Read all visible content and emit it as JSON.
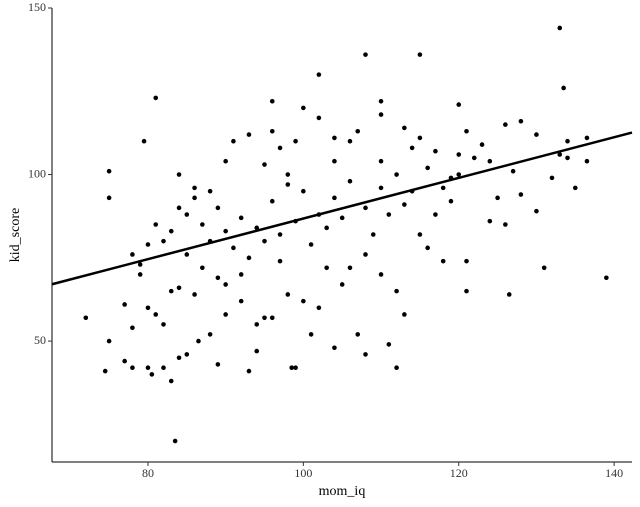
{
  "chart_data": {
    "type": "scatter",
    "x_label": "mom_iq",
    "y_label": "kid_score",
    "xlim": [
      67.65,
      142.3
    ],
    "ylim": [
      13.7,
      150
    ],
    "xticks": [
      80,
      100,
      120,
      140
    ],
    "yticks": [
      50,
      100,
      150
    ],
    "grid": false,
    "color": "#000000",
    "fit": {
      "intercept": 25.8,
      "slope": 0.61,
      "color": "#000000"
    },
    "x": [
      133,
      115,
      108,
      133.5,
      81,
      96,
      102,
      120,
      110,
      79.5,
      75,
      75,
      84,
      139,
      131,
      126.5,
      121,
      121,
      112,
      111,
      108,
      107,
      83.5,
      72,
      74.5,
      75,
      77,
      78,
      77,
      78,
      80,
      80.5,
      82,
      83,
      84,
      85,
      83,
      86,
      86.5,
      88,
      89,
      93,
      98.5,
      99,
      94,
      101,
      104,
      113,
      96,
      95,
      100,
      90,
      92,
      90,
      97,
      103,
      105,
      110,
      112,
      116,
      118,
      124,
      126,
      128,
      130,
      132,
      133,
      134,
      135,
      136.5,
      136.5,
      134,
      130,
      128,
      126,
      123,
      121,
      120,
      119,
      117,
      115,
      113,
      110,
      107,
      104,
      102,
      100,
      99,
      97,
      95,
      93,
      91,
      90,
      88,
      86,
      85,
      84,
      83,
      82,
      80,
      79,
      78,
      81,
      87,
      89,
      92,
      94,
      96,
      98,
      100,
      102,
      104,
      106,
      108,
      110,
      112,
      114,
      116,
      118,
      120,
      122,
      124,
      127,
      125,
      91,
      93,
      95,
      97,
      99,
      101,
      103,
      105,
      109,
      111,
      113,
      87,
      89,
      85,
      81,
      82,
      80,
      79,
      84,
      92,
      94,
      98,
      102,
      106,
      108,
      115,
      117,
      119,
      88,
      90,
      86,
      96,
      98,
      104,
      106,
      110,
      114
    ],
    "y": [
      144,
      136,
      136,
      126,
      123,
      122,
      130,
      121,
      122,
      110,
      101,
      93,
      100,
      69,
      72,
      64,
      65,
      74,
      42,
      49,
      46,
      52,
      20,
      57,
      41,
      50,
      61,
      54,
      44,
      42,
      42,
      40,
      42,
      38,
      45,
      46,
      65,
      64,
      50,
      52,
      43,
      41,
      42,
      42,
      47,
      52,
      48,
      58,
      57,
      57,
      62,
      67,
      70,
      58,
      74,
      72,
      67,
      70,
      65,
      78,
      74,
      86,
      85,
      94,
      89,
      99,
      106,
      105,
      96,
      104,
      111,
      110,
      112,
      116,
      115,
      109,
      113,
      106,
      99,
      107,
      111,
      114,
      118,
      113,
      111,
      117,
      120,
      110,
      108,
      103,
      112,
      110,
      104,
      95,
      93,
      88,
      90,
      83,
      80,
      79,
      73,
      76,
      85,
      85,
      90,
      87,
      84,
      92,
      97,
      95,
      88,
      93,
      98,
      90,
      96,
      100,
      95,
      102,
      96,
      100,
      105,
      104,
      101,
      93,
      78,
      75,
      80,
      82,
      86,
      79,
      84,
      87,
      82,
      88,
      91,
      72,
      69,
      76,
      58,
      55,
      60,
      70,
      66,
      62,
      55,
      64,
      60,
      72,
      76,
      82,
      88,
      92,
      80,
      83,
      96,
      113,
      100,
      104,
      110,
      104,
      108
    ]
  }
}
